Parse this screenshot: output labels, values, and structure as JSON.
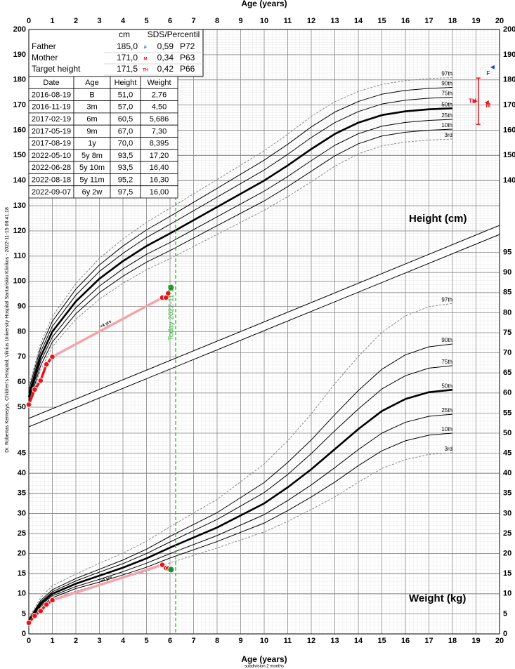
{
  "chart_data": [
    {
      "type": "line",
      "title": "Height (cm)",
      "x_label": "Age (years)",
      "xlim": [
        0,
        20
      ],
      "xticks": [
        0,
        1,
        2,
        3,
        4,
        5,
        6,
        7,
        8,
        9,
        10,
        11,
        12,
        13,
        14,
        15,
        16,
        17,
        18,
        19,
        20
      ],
      "ylim": [
        50,
        200
      ],
      "yticks": [
        50,
        60,
        70,
        80,
        90,
        100,
        110,
        120,
        130,
        140,
        150,
        160,
        170,
        180,
        190,
        200
      ],
      "y2lim": [
        50,
        200
      ],
      "y2ticks": [
        140,
        150,
        160,
        170,
        180,
        190,
        200
      ],
      "grid": true,
      "x": [
        0,
        0.5,
        1,
        2,
        3,
        4,
        5,
        6,
        8,
        10,
        11,
        12,
        13,
        14,
        15,
        16,
        17,
        18
      ],
      "series": [
        {
          "name": "3rd",
          "color": "#888888",
          "style": "dashed",
          "values": [
            49.9,
            64.7,
            74.0,
            84.9,
            92.9,
            99.2,
            104.6,
            109.0,
            118.6,
            128.2,
            133.6,
            139.5,
            145.7,
            150.6,
            153.8,
            155.3,
            156.1,
            156.5
          ]
        },
        {
          "name": "10th",
          "color": "#000000",
          "style": "solid",
          "values": [
            51.2,
            66.4,
            75.9,
            87.1,
            95.5,
            102.0,
            107.6,
            112.2,
            122.1,
            131.9,
            137.6,
            143.7,
            149.8,
            154.6,
            157.7,
            159.2,
            160.0,
            160.4
          ]
        },
        {
          "name": "25th",
          "color": "#000000",
          "style": "solid",
          "values": [
            52.5,
            68.1,
            77.9,
            89.5,
            98.1,
            104.9,
            110.7,
            115.4,
            125.6,
            135.8,
            141.6,
            147.9,
            154.0,
            158.6,
            161.6,
            163.1,
            163.9,
            164.3
          ]
        },
        {
          "name": "50th",
          "color": "#000000",
          "style": "bold",
          "values": [
            54,
            70,
            80,
            92,
            101,
            108,
            114,
            119,
            129.5,
            140,
            146,
            152.5,
            158.5,
            163,
            166,
            167.5,
            168.3,
            168.7
          ]
        },
        {
          "name": "75th",
          "color": "#000000",
          "style": "solid",
          "values": [
            55.5,
            71.9,
            82.1,
            94.5,
            103.9,
            111.1,
            117.4,
            122.6,
            133.4,
            144.2,
            150.4,
            157.1,
            163.0,
            167.4,
            170.4,
            171.9,
            172.7,
            173.1
          ]
        },
        {
          "name": "90th",
          "color": "#000000",
          "style": "solid",
          "values": [
            56.8,
            73.6,
            84.1,
            96.9,
            106.5,
            114.0,
            120.4,
            125.8,
            136.9,
            148.1,
            154.4,
            161.3,
            167.2,
            171.4,
            174.3,
            175.8,
            176.6,
            177.0
          ]
        },
        {
          "name": "97th",
          "color": "#888888",
          "style": "dashed",
          "values": [
            58.1,
            75.3,
            86.0,
            99.1,
            109.1,
            116.8,
            123.4,
            129.0,
            140.4,
            151.8,
            158.4,
            165.5,
            171.3,
            175.4,
            178.2,
            179.7,
            180.5,
            180.9
          ]
        }
      ],
      "measurements": {
        "x": [
          0,
          0.25,
          0.5,
          0.75,
          1,
          5.67,
          5.83,
          5.92,
          6.04
        ],
        "values": [
          51.0,
          57.0,
          60.5,
          67.0,
          70.0,
          93.5,
          93.5,
          95.2,
          97.5
        ],
        "colors": [
          "#e8141a",
          "#e8141a",
          "#e8141a",
          "#e8141a",
          "#e8141a",
          "#e8141a",
          "#e8141a",
          "#e8141a",
          "#1e8c2c"
        ],
        "segment_colors": [
          "#e8141a",
          "#e8141a",
          "#e8141a",
          "#e8141a",
          "#f5a3ab",
          "#e8141a",
          "#e8141a",
          "#e8141a"
        ],
        "gap_label": ">4 yrs"
      },
      "target": {
        "x": 19.1,
        "range": [
          162.3,
          180.7
        ],
        "color": "#e8141a",
        "marks": [
          {
            "label": "F",
            "value": 185,
            "color": "#1a3fd6"
          },
          {
            "label": "M",
            "value": 171,
            "color": "#e8141a"
          },
          {
            "label": "TH",
            "value": 171.5,
            "color": "#e8141a"
          }
        ]
      }
    },
    {
      "type": "line",
      "title": "Weight (kg)",
      "x_label": "Age (years)",
      "x_sublabel": "subdivision 2 months",
      "xlim": [
        0,
        20
      ],
      "xticks": [
        0,
        1,
        2,
        3,
        4,
        5,
        6,
        7,
        8,
        9,
        10,
        11,
        12,
        13,
        14,
        15,
        16,
        17,
        18,
        19,
        20
      ],
      "ylim": [
        0,
        95
      ],
      "yticks": [
        0,
        5,
        10,
        15,
        20,
        25,
        30,
        35,
        40,
        45
      ],
      "y2lim": [
        0,
        95
      ],
      "y2ticks": [
        0,
        5,
        10,
        15,
        20,
        25,
        30,
        35,
        40,
        45,
        50,
        55,
        60,
        65,
        70,
        75,
        80,
        85,
        90,
        95
      ],
      "grid": true,
      "x": [
        0,
        0.5,
        1,
        2,
        3,
        4,
        5,
        6,
        8,
        10,
        11,
        12,
        13,
        14,
        15,
        16,
        17,
        18
      ],
      "series": [
        {
          "name": "3rd",
          "color": "#888888",
          "style": "dashed",
          "values": [
            2.8,
            6.4,
            8.6,
            10.7,
            12.3,
            13.9,
            15.6,
            17.7,
            21.4,
            25.4,
            28.0,
            31.0,
            34.1,
            37.8,
            41.2,
            43.4,
            44.7,
            45.1
          ]
        },
        {
          "name": "10th",
          "color": "#000000",
          "style": "solid",
          "values": [
            3.0,
            6.8,
            9.0,
            11.3,
            12.9,
            14.7,
            16.6,
            18.9,
            23.0,
            27.6,
            30.7,
            34.1,
            37.8,
            41.9,
            45.6,
            48.1,
            49.5,
            50.0
          ]
        },
        {
          "name": "25th",
          "color": "#000000",
          "style": "solid",
          "values": [
            3.1,
            7.1,
            9.5,
            11.8,
            13.6,
            15.5,
            17.6,
            20.0,
            24.5,
            29.7,
            33.2,
            37.1,
            41.4,
            45.9,
            50.0,
            52.7,
            54.2,
            54.7
          ]
        },
        {
          "name": "50th",
          "color": "#000000",
          "style": "bold",
          "values": [
            3.3,
            7.5,
            10,
            12.5,
            14.5,
            16.5,
            18.8,
            21.5,
            26.5,
            32.5,
            36.5,
            41,
            46,
            51,
            55.5,
            58.5,
            60.2,
            60.8
          ]
        },
        {
          "name": "75th",
          "color": "#000000",
          "style": "solid",
          "values": [
            3.5,
            7.9,
            10.5,
            13.2,
            15.4,
            17.5,
            20.0,
            22.9,
            28.5,
            35.2,
            39.7,
            44.9,
            50.6,
            56.0,
            61.0,
            64.3,
            66.2,
            66.8
          ]
        },
        {
          "name": "90th",
          "color": "#000000",
          "style": "solid",
          "values": [
            3.6,
            8.3,
            11.0,
            13.8,
            16.1,
            18.4,
            21.1,
            24.3,
            30.2,
            37.7,
            42.7,
            48.3,
            54.6,
            60.6,
            65.9,
            69.5,
            71.5,
            72.2
          ]
        },
        {
          "name": "97th",
          "color": "#888888",
          "style": "dashed",
          "values": [
            3.9,
            9.0,
            12.0,
            14.9,
            17.6,
            20.1,
            23.1,
            26.7,
            33.5,
            42.3,
            48.1,
            54.8,
            62.3,
            69.1,
            75.1,
            79.2,
            81.5,
            82.3
          ]
        }
      ],
      "measurements": {
        "x": [
          0,
          0.25,
          0.5,
          0.75,
          1,
          5.67,
          5.83,
          5.92,
          6.04
        ],
        "values": [
          2.76,
          4.5,
          5.686,
          7.3,
          8.395,
          17.2,
          16.4,
          16.3,
          16.0
        ],
        "colors": [
          "#e8141a",
          "#e8141a",
          "#e8141a",
          "#e8141a",
          "#e8141a",
          "#e8141a",
          "#e8141a",
          "#e8141a",
          "#1e8c2c"
        ],
        "segment_colors": [
          "#e8141a",
          "#e8141a",
          "#e8141a",
          "#e8141a",
          "#f5a3ab",
          "#e8141a",
          "#e8141a",
          "#e8141a"
        ],
        "gap_label": ">4 yrs"
      }
    }
  ],
  "today": {
    "label": "Today 2022-11-15",
    "x": 6.24,
    "color": "#2bb52b"
  },
  "parents_table": {
    "header": [
      "cm",
      "SDS/Percentil"
    ],
    "rows": [
      {
        "label": "Father",
        "cm": "185,0",
        "symbol": "F",
        "color": "#1a3fd6",
        "sds": "0,59",
        "percentile": "P72"
      },
      {
        "label": "Mother",
        "cm": "171,0",
        "symbol": "M",
        "color": "#e8141a",
        "sds": "0,34",
        "percentile": "P63"
      },
      {
        "label": "Target height",
        "cm": "171,5",
        "symbol": "TH",
        "color": "#e8141a",
        "sds": "0,42",
        "percentile": "P66"
      }
    ]
  },
  "measurements_table": {
    "header": [
      "Date",
      "Age",
      "Height",
      "Weight"
    ],
    "rows": [
      [
        "2016-08-19",
        "B",
        "51,0",
        "2,76"
      ],
      [
        "2016-11-19",
        "3m",
        "57,0",
        "4,50"
      ],
      [
        "2017-02-19",
        "6m",
        "60,5",
        "5,686"
      ],
      [
        "2017-05-19",
        "9m",
        "67,0",
        "7,30"
      ],
      [
        "2017-08-19",
        "1y",
        "70,0",
        "8,395"
      ],
      [
        "2022-05-10",
        "5y 8m",
        "93,5",
        "17,20"
      ],
      [
        "2022-06-28",
        "5y 10m",
        "93,5",
        "16,40"
      ],
      [
        "2022-08-18",
        "5y 11m",
        "95,2",
        "16,30"
      ],
      [
        "2022-09-07",
        "6y 2w",
        "97,5",
        "16,00"
      ]
    ]
  },
  "credit": "Dr. Robertas Kemezys, Children's Hospital, Vilnius University Hospital Santariskiu Klinikos - 2022-11-15 08:41:18"
}
